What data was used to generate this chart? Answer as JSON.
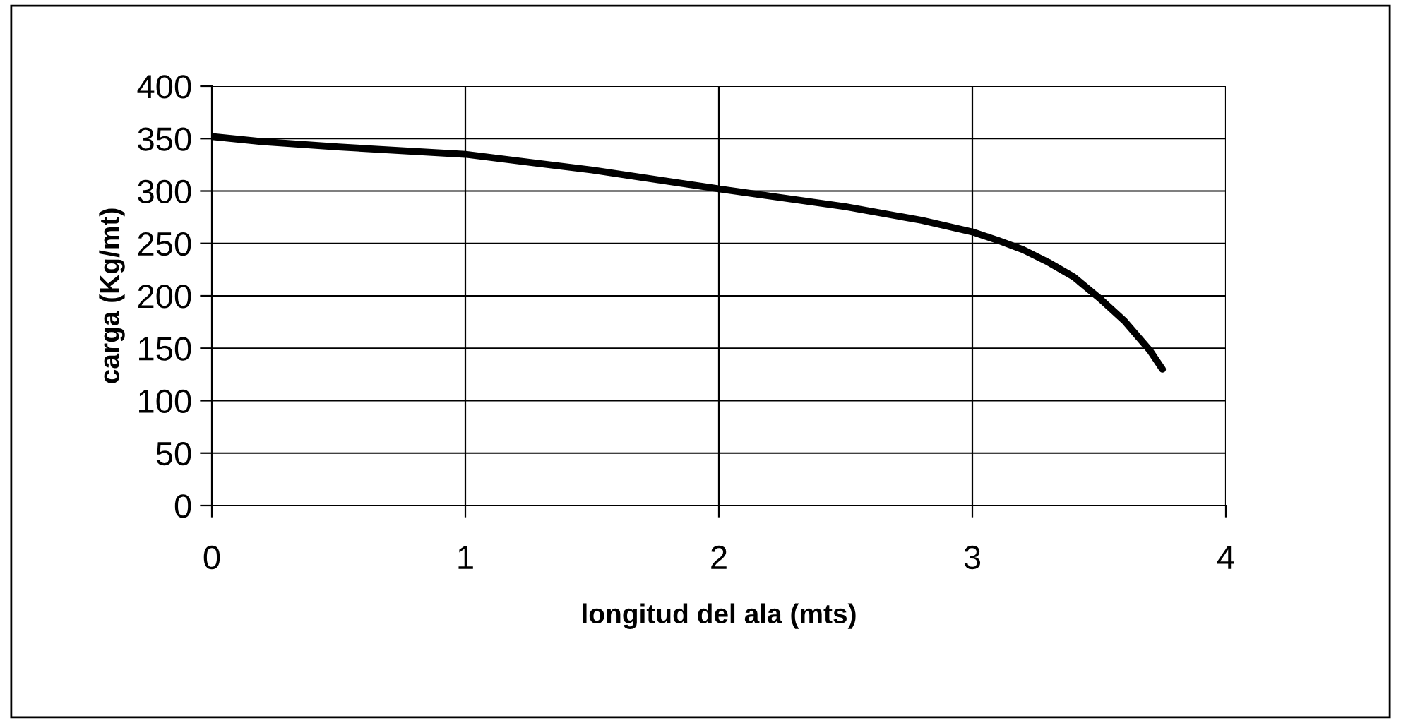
{
  "chart_data": {
    "type": "line",
    "xlabel": "longitud del ala (mts)",
    "ylabel": "carga (Kg/mt)",
    "xlim": [
      0,
      4
    ],
    "xticks": [
      0,
      1,
      2,
      3,
      4
    ],
    "ylim": [
      0,
      400
    ],
    "yticks": [
      0,
      50,
      100,
      150,
      200,
      250,
      300,
      350,
      400
    ],
    "grid": true,
    "series": [
      {
        "color": "#000000",
        "x": [
          0,
          0.2,
          0.5,
          1,
          1.5,
          2,
          2.5,
          2.8,
          3,
          3.1,
          3.2,
          3.3,
          3.4,
          3.5,
          3.6,
          3.7,
          3.75
        ],
        "values": [
          352,
          347,
          342,
          335,
          320,
          302,
          285,
          272,
          261,
          253,
          244,
          232,
          218,
          198,
          176,
          148,
          130
        ]
      }
    ]
  }
}
